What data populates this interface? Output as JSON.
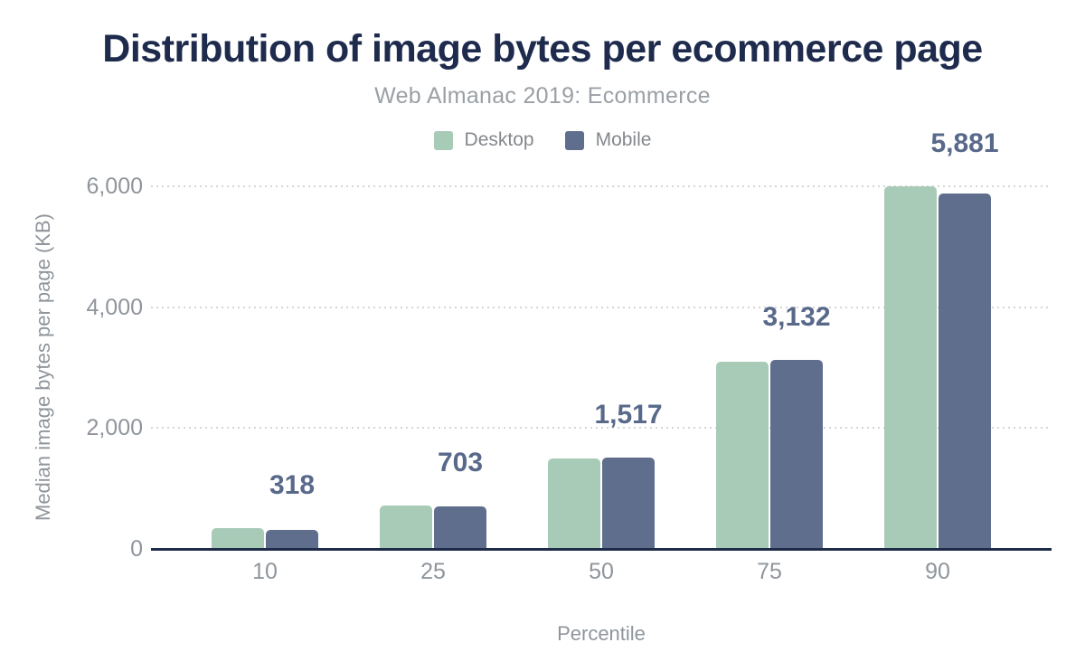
{
  "title": "Distribution of image bytes per ecommerce page",
  "subtitle": "Web Almanac 2019: Ecommerce",
  "legend": {
    "items": [
      {
        "label": "Desktop",
        "color": "#a8cbb8"
      },
      {
        "label": "Mobile",
        "color": "#5e6e8c"
      }
    ]
  },
  "colors": {
    "background": "#ffffff",
    "title": "#1e2b4d",
    "subtitle": "#9aa0a5",
    "legend_text": "#84888d",
    "tick_text": "#8f959b",
    "axis_line": "#1f2c49",
    "gridline": "#d6d6d6",
    "desktop_bar": "#a8cbb8",
    "mobile_bar": "#5e6e8c",
    "data_label": "#59698a"
  },
  "chart_data": {
    "type": "bar",
    "title": "Distribution of image bytes per ecommerce page",
    "subtitle": "Web Almanac 2019: Ecommerce",
    "categories": [
      "10",
      "25",
      "50",
      "75",
      "90"
    ],
    "series": [
      {
        "name": "Desktop",
        "color": "#a8cbb8",
        "values": [
          350,
          715,
          1490,
          3090,
          6000
        ]
      },
      {
        "name": "Mobile",
        "color": "#5e6e8c",
        "values": [
          318,
          703,
          1517,
          3132,
          5881
        ],
        "data_labels": [
          "318",
          "703",
          "1,517",
          "3,132",
          "5,881"
        ]
      }
    ],
    "xlabel": "Percentile",
    "ylabel": "Median image bytes per page (KB)",
    "ylim": [
      0,
      6000
    ],
    "yticks": [
      0,
      2000,
      4000,
      6000
    ],
    "ytick_labels": [
      "0",
      "2,000",
      "4,000",
      "6,000"
    ],
    "grid": "horizontal-dotted",
    "legend_position": "top-center",
    "note": "Data labels shown on chart annotate the Mobile series; Desktop values estimated from bar heights"
  }
}
